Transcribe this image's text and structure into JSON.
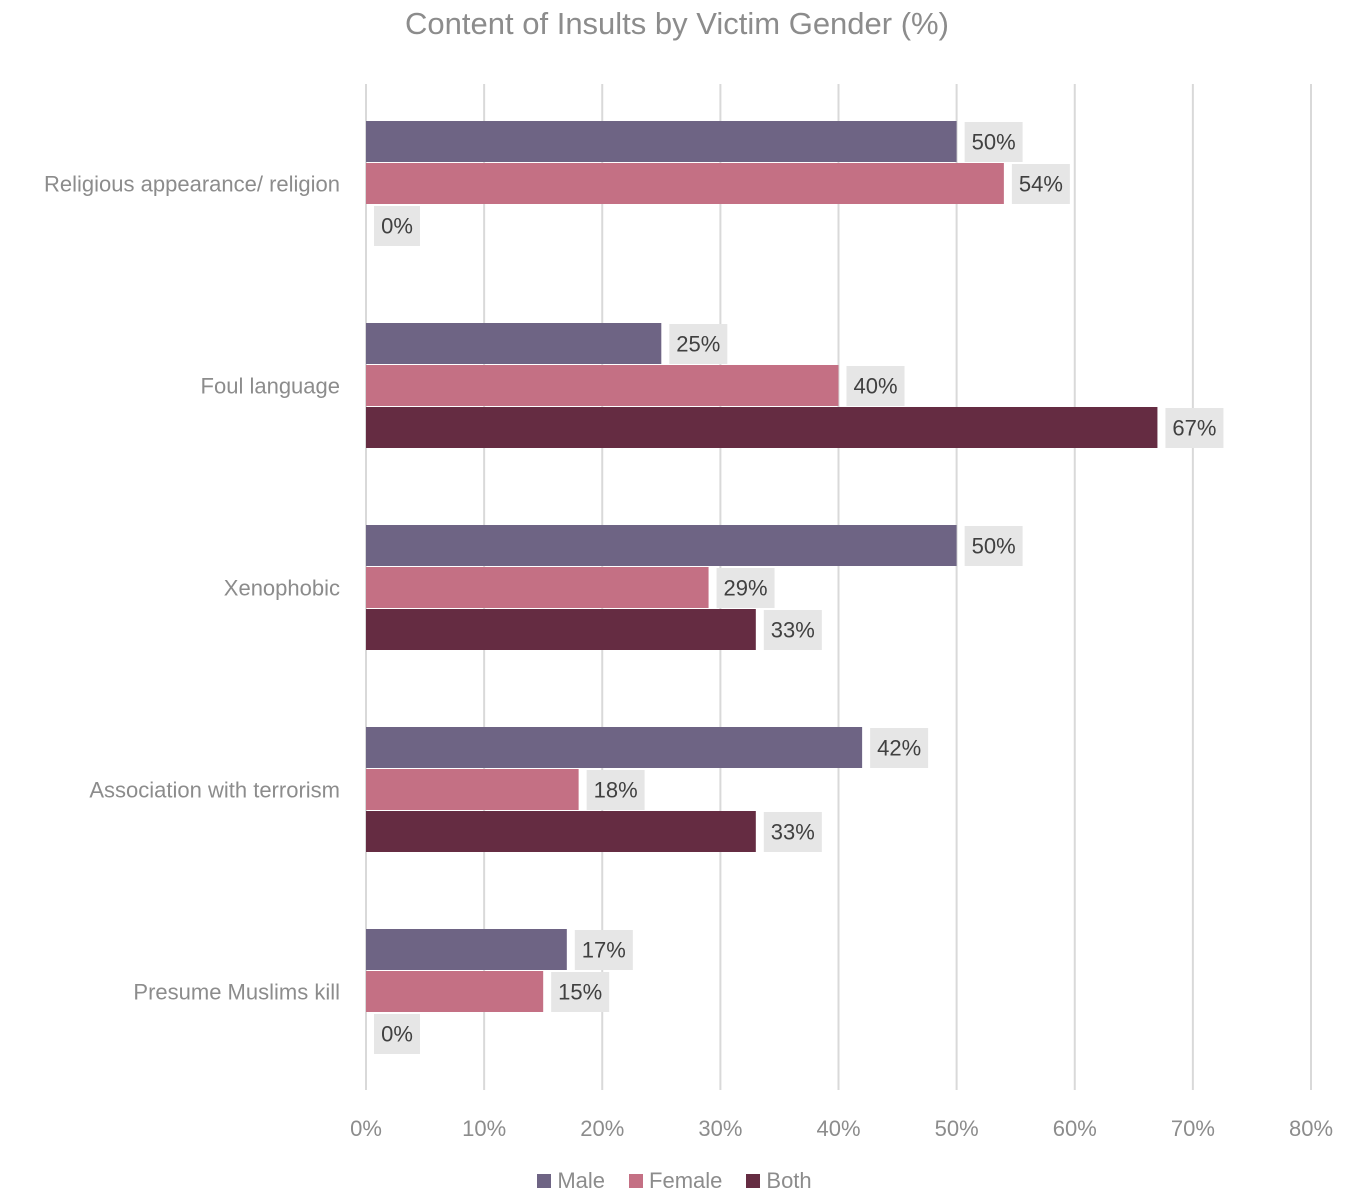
{
  "chart_data": {
    "type": "bar",
    "orientation": "horizontal",
    "title": "Content of Insults by Victim Gender (%)",
    "categories": [
      "Religious appearance/ religion",
      "Foul language",
      "Xenophobic",
      "Association with terrorism",
      "Presume Muslims kill"
    ],
    "series": [
      {
        "name": "Male",
        "color": "#6e6484",
        "values": [
          50,
          25,
          50,
          42,
          17
        ]
      },
      {
        "name": "Female",
        "color": "#c47084",
        "values": [
          54,
          40,
          29,
          18,
          15
        ]
      },
      {
        "name": "Both",
        "color": "#652c42",
        "values": [
          0,
          67,
          33,
          33,
          0
        ]
      }
    ],
    "xlim": [
      0,
      80
    ],
    "x_ticks": [
      0,
      10,
      20,
      30,
      40,
      50,
      60,
      70,
      80
    ],
    "x_tick_labels": [
      "0%",
      "10%",
      "20%",
      "30%",
      "40%",
      "50%",
      "60%",
      "70%",
      "80%"
    ],
    "value_suffix": "%",
    "grid": true,
    "legend_position": "bottom"
  }
}
